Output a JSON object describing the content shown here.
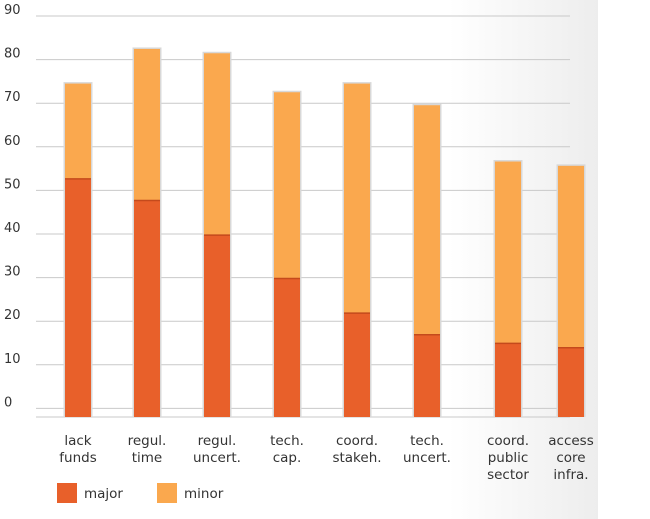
{
  "chart_data": {
    "type": "bar",
    "stacked": true,
    "y_tick_labels": [
      "0",
      "10",
      "20",
      "30",
      "40",
      "50",
      "60",
      "70",
      "80",
      "90"
    ],
    "categories": [
      [
        "lack",
        "funds"
      ],
      [
        "regul.",
        "time"
      ],
      [
        "regul.",
        "uncert."
      ],
      [
        "tech.",
        "cap."
      ],
      [
        "coord.",
        "stakeh."
      ],
      [
        "tech.",
        "uncert."
      ],
      [
        "coord.",
        "public",
        "sector"
      ],
      [
        "access",
        "core",
        "infra."
      ]
    ],
    "series": [
      {
        "name": "major",
        "color": "#E8602A",
        "values": [
          55,
          50,
          42,
          32,
          24,
          19,
          17,
          16
        ]
      },
      {
        "name": "minor",
        "color": "#FAA84E",
        "values": [
          22,
          35,
          42,
          43,
          53,
          53,
          42,
          42
        ]
      }
    ],
    "legend_position": "bottom-left",
    "gridlines": true
  }
}
